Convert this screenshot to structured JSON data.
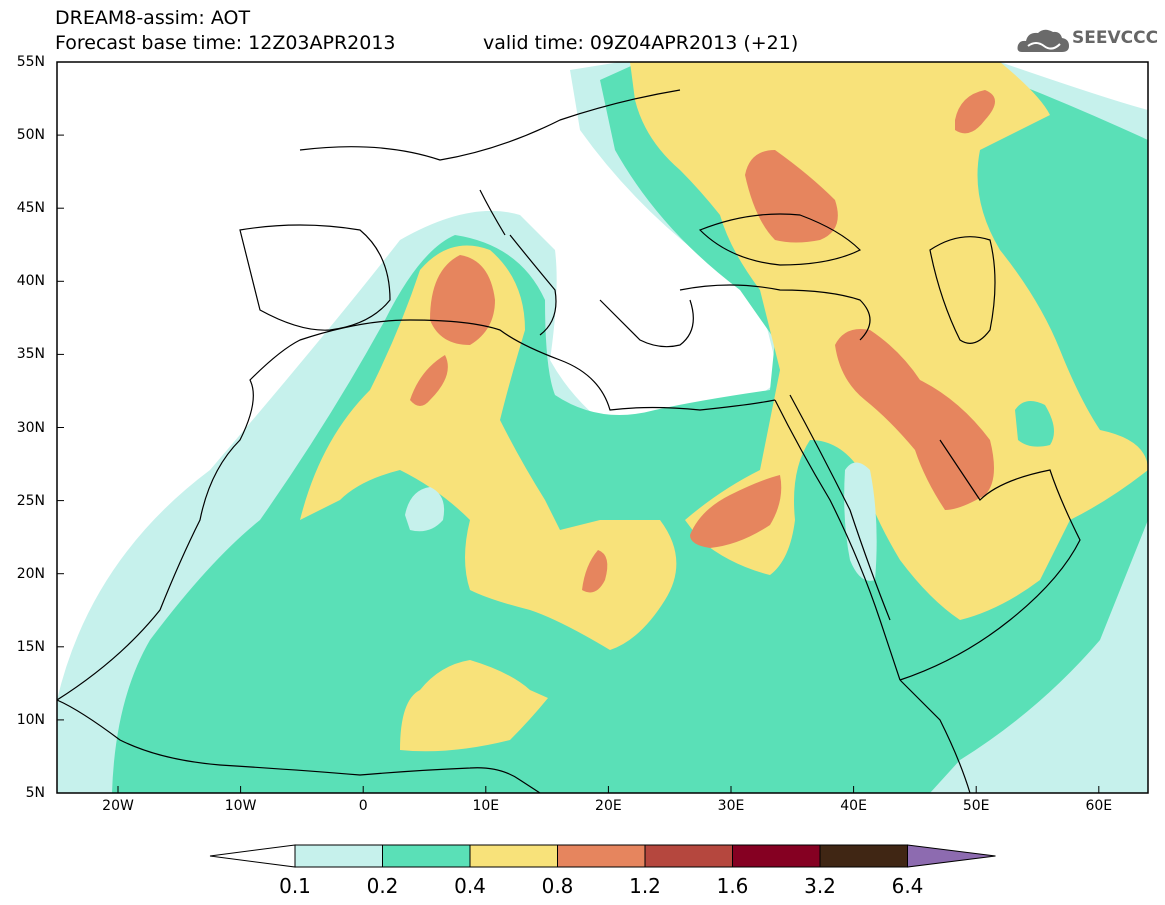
{
  "header": {
    "model_line": "DREAM8-assim: AOT",
    "base_time_line": "Forecast base time: 12Z03APR2013",
    "valid_time_line": "valid time: 09Z04APR2013 (+21)",
    "logo_text": "SEEVCCC"
  },
  "map": {
    "lat_labels": [
      "55N",
      "50N",
      "45N",
      "40N",
      "35N",
      "30N",
      "25N",
      "20N",
      "15N",
      "10N",
      "5N"
    ],
    "lon_labels": [
      "20W",
      "10W",
      "0",
      "10E",
      "20E",
      "30E",
      "40E",
      "50E",
      "60E"
    ]
  },
  "colorbar": {
    "ticks": [
      "0.1",
      "0.2",
      "0.4",
      "0.8",
      "1.2",
      "1.6",
      "3.2",
      "6.4"
    ],
    "colors": [
      "#ffffff",
      "#c6f1ec",
      "#5ae0b7",
      "#f8e27a",
      "#e6855e",
      "#b5473e",
      "#850022",
      "#402614",
      "#8d6bb0"
    ]
  }
}
